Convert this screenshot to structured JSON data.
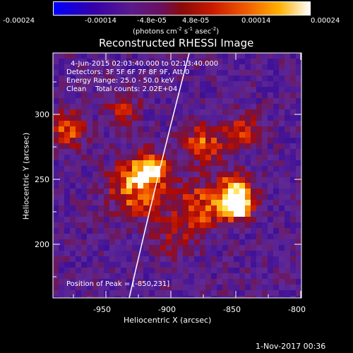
{
  "colorbar": {
    "ticks": [
      "-0.00024",
      "-0.00014",
      "-4.8e-05",
      "4.8e-05",
      "0.00014",
      "0.00024"
    ],
    "units_main": "(photons cm",
    "units_exp1": "-2",
    "units_mid": " s",
    "units_exp2": "-1",
    "units_asec": " asec",
    "units_exp3": "-2",
    "units_close": ")",
    "stops": [
      "#0000ff",
      "#4b0082",
      "#7a2aa0",
      "#8b1010",
      "#e02000",
      "#ff8000",
      "#ffffff"
    ]
  },
  "title": "Reconstructed RHESSI Image",
  "info": {
    "time": "4-Jun-2015 02:03:40.000 to 02:13:40.000",
    "detectors": "Detectors: 3F 5F 6F 7F 8F 9F, Att 0",
    "energy": "Energy Range: 25.0 - 50.0 keV",
    "clean": "Clean    Total counts: 2.02E+04"
  },
  "peak": "Position of Peak = [-850,231]",
  "xaxis": {
    "label": "Heliocentric X (arcsec)",
    "ticks": [
      "-950",
      "-900",
      "-850",
      "-800"
    ]
  },
  "yaxis": {
    "label": "Heliocentric Y (arcsec)",
    "ticks": [
      "300",
      "250",
      "200"
    ]
  },
  "footer_date": "1-Nov-2017 00:36"
}
